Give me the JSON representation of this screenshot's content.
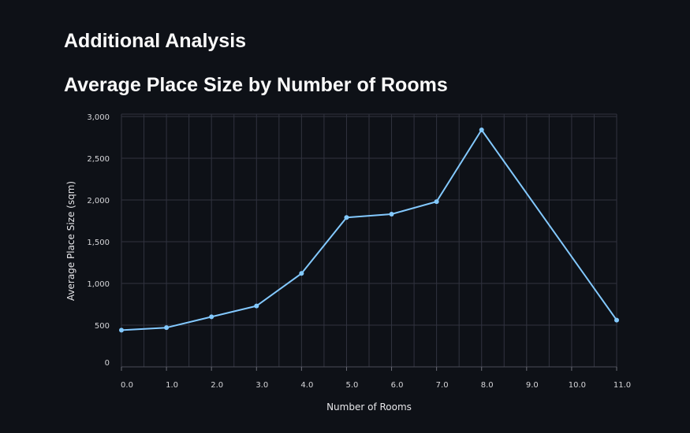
{
  "section_title": "Additional Analysis",
  "chart_data": {
    "type": "line",
    "title": "Average Place Size by Number of Rooms",
    "xlabel": "Number of Rooms",
    "ylabel": "Average Place Size (sqm)",
    "x": [
      0,
      1,
      2,
      3,
      4,
      5,
      6,
      7,
      8,
      11
    ],
    "x_tick_values": [
      0,
      1,
      2,
      3,
      4,
      5,
      6,
      7,
      8,
      9,
      10,
      11
    ],
    "x_tick_labels": [
      "0.0",
      "1.0",
      "2.0",
      "3.0",
      "4.0",
      "5.0",
      "6.0",
      "7.0",
      "8.0",
      "9.0",
      "10.0",
      "11.0"
    ],
    "xlim": [
      0,
      11
    ],
    "series": [
      {
        "values": [
          440,
          470,
          600,
          730,
          1120,
          1790,
          1830,
          1980,
          2840,
          560
        ],
        "color": "#83c9ff"
      }
    ],
    "y_tick_values": [
      0,
      500,
      1000,
      1500,
      2000,
      2500,
      3000
    ],
    "y_tick_labels": [
      "0",
      "500",
      "1,000",
      "1,500",
      "2,000",
      "2,500",
      "3,000"
    ],
    "ylim": [
      0,
      3000
    ],
    "grid": true,
    "colors": {
      "background": "#0e1117",
      "grid": "#31333f",
      "text": "#fafafa"
    }
  }
}
